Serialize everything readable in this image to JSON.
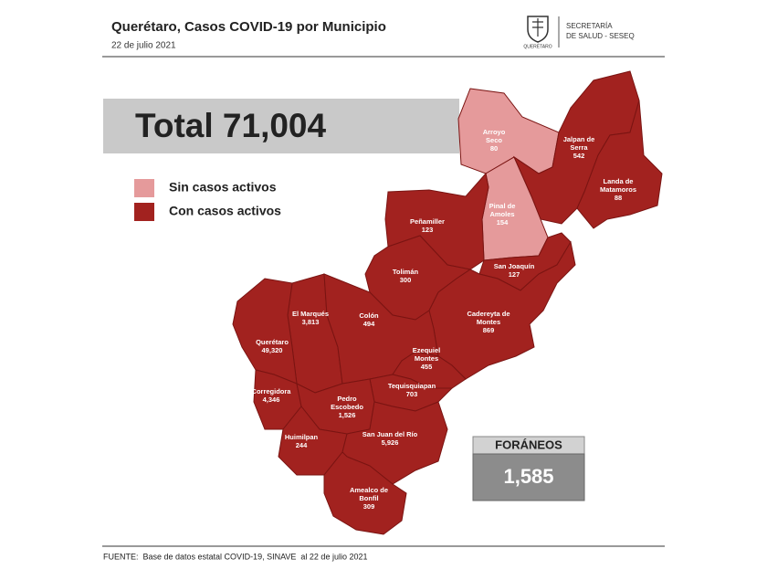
{
  "header": {
    "title": "Querétaro, Casos COVID-19 por Municipio",
    "date": "22 de julio 2021",
    "logo_text": "QUERÉTARO",
    "agency": [
      "SECRETARÍA",
      "DE SALUD - SESEQ"
    ]
  },
  "total": "Total 71,004",
  "legend": [
    {
      "label": "Sin casos activos",
      "color": "#e59a9b"
    },
    {
      "label": "Con casos activos",
      "color": "#a2221f"
    }
  ],
  "municipalities": [
    {
      "name": [
        "Arroyo",
        "Seco"
      ],
      "cases": "80",
      "active": false
    },
    {
      "name": [
        "Jalpan de",
        "Serra"
      ],
      "cases": "542",
      "active": true
    },
    {
      "name": [
        "Landa de",
        "Matamoros"
      ],
      "cases": "88",
      "active": true
    },
    {
      "name": [
        "Pinal de",
        "Amoles"
      ],
      "cases": "154",
      "active": false
    },
    {
      "name": [
        "Peñamiller"
      ],
      "cases": "123",
      "active": true
    },
    {
      "name": [
        "San Joaquín"
      ],
      "cases": "127",
      "active": true
    },
    {
      "name": [
        "Tolimán"
      ],
      "cases": "300",
      "active": true
    },
    {
      "name": [
        "Cadereyta de",
        "Montes"
      ],
      "cases": "869",
      "active": true
    },
    {
      "name": [
        "El  Marqués"
      ],
      "cases": "3,813",
      "active": true
    },
    {
      "name": [
        "Colón"
      ],
      "cases": "494",
      "active": true
    },
    {
      "name": [
        "Querétaro"
      ],
      "cases": "49,320",
      "active": true
    },
    {
      "name": [
        "Ezequiel",
        "Montes"
      ],
      "cases": "455",
      "active": true
    },
    {
      "name": [
        "Tequisquiapan"
      ],
      "cases": "703",
      "active": true
    },
    {
      "name": [
        "Corregidora"
      ],
      "cases": "4,346",
      "active": true
    },
    {
      "name": [
        "Pedro",
        "Escobedo"
      ],
      "cases": "1,526",
      "active": true
    },
    {
      "name": [
        "Huimilpan"
      ],
      "cases": "244",
      "active": true
    },
    {
      "name": [
        "San Juan del Río"
      ],
      "cases": "5,926",
      "active": true
    },
    {
      "name": [
        "Amealco de",
        "Bonfil"
      ],
      "cases": "309",
      "active": true
    }
  ],
  "foraneos": {
    "label": "FORÁNEOS",
    "value": "1,585"
  },
  "source": "FUENTE:  Base de datos estatal COVID-19, SINAVE  al 22 de julio 2021"
}
